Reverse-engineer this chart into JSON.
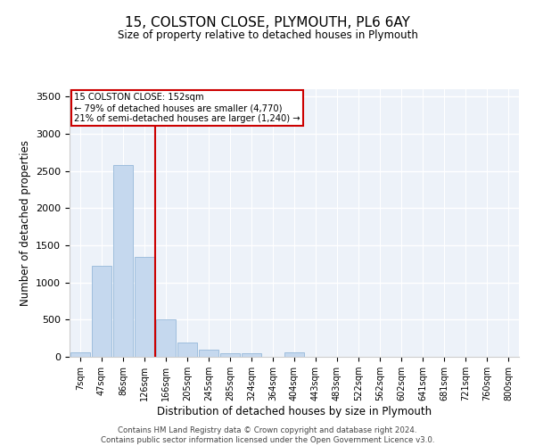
{
  "title1": "15, COLSTON CLOSE, PLYMOUTH, PL6 6AY",
  "title2": "Size of property relative to detached houses in Plymouth",
  "xlabel": "Distribution of detached houses by size in Plymouth",
  "ylabel": "Number of detached properties",
  "categories": [
    "7sqm",
    "47sqm",
    "86sqm",
    "126sqm",
    "166sqm",
    "205sqm",
    "245sqm",
    "285sqm",
    "324sqm",
    "364sqm",
    "404sqm",
    "443sqm",
    "483sqm",
    "522sqm",
    "562sqm",
    "602sqm",
    "641sqm",
    "681sqm",
    "721sqm",
    "760sqm",
    "800sqm"
  ],
  "bar_values": [
    60,
    1220,
    2580,
    1340,
    500,
    190,
    100,
    50,
    45,
    0,
    55,
    0,
    0,
    0,
    0,
    0,
    0,
    0,
    0,
    0,
    0
  ],
  "bar_color": "#c5d8ee",
  "bar_edge_color": "#88afd4",
  "annotation_label": "15 COLSTON CLOSE: 152sqm",
  "annotation_line1": "← 79% of detached houses are smaller (4,770)",
  "annotation_line2": "21% of semi-detached houses are larger (1,240) →",
  "vline_color": "#cc0000",
  "ylim": [
    0,
    3600
  ],
  "yticks": [
    0,
    500,
    1000,
    1500,
    2000,
    2500,
    3000,
    3500
  ],
  "footer1": "Contains HM Land Registry data © Crown copyright and database right 2024.",
  "footer2": "Contains public sector information licensed under the Open Government Licence v3.0.",
  "plot_bg_color": "#edf2f9"
}
